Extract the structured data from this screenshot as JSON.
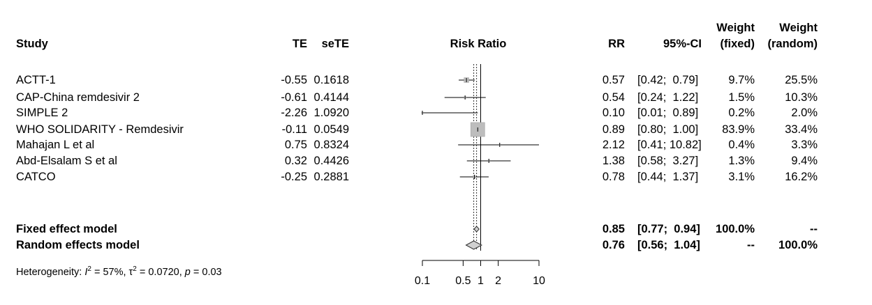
{
  "chart_data": {
    "type": "forest",
    "headers": {
      "study": "Study",
      "te": "TE",
      "sete": "seTE",
      "plot": "Risk Ratio",
      "rr": "RR",
      "ci": "95%-CI",
      "weight_fixed_1": "Weight",
      "weight_fixed_2": "(fixed)",
      "weight_random_1": "Weight",
      "weight_random_2": "(random)"
    },
    "studies": [
      {
        "name": "ACTT-1",
        "te": "-0.55",
        "sete": "0.1618",
        "rr": "0.57",
        "ci": "[0.42;  0.79]",
        "wf": "9.7%",
        "wr": "25.5%",
        "rr_val": 0.57,
        "lo": 0.42,
        "hi": 0.79,
        "weight": 9.7
      },
      {
        "name": "CAP-China remdesivir 2",
        "te": "-0.61",
        "sete": "0.4144",
        "rr": "0.54",
        "ci": "[0.24;  1.22]",
        "wf": "1.5%",
        "wr": "10.3%",
        "rr_val": 0.54,
        "lo": 0.24,
        "hi": 1.22,
        "weight": 1.5
      },
      {
        "name": "SIMPLE 2",
        "te": "-2.26",
        "sete": "1.0920",
        "rr": "0.10",
        "ci": "[0.01;  0.89]",
        "wf": "0.2%",
        "wr": "2.0%",
        "rr_val": 0.1,
        "lo": 0.01,
        "hi": 0.89,
        "weight": 0.2
      },
      {
        "name": "WHO SOLIDARITY - Remdesivir",
        "te": "-0.11",
        "sete": "0.0549",
        "rr": "0.89",
        "ci": "[0.80;  1.00]",
        "wf": "83.9%",
        "wr": "33.4%",
        "rr_val": 0.89,
        "lo": 0.8,
        "hi": 1.0,
        "weight": 83.9
      },
      {
        "name": "Mahajan L et al",
        "te": "0.75",
        "sete": "0.8324",
        "rr": "2.12",
        "ci": "[0.41; 10.82]",
        "wf": "0.4%",
        "wr": "3.3%",
        "rr_val": 2.12,
        "lo": 0.41,
        "hi": 10.82,
        "weight": 0.4
      },
      {
        "name": "Abd-Elsalam S et al",
        "te": "0.32",
        "sete": "0.4426",
        "rr": "1.38",
        "ci": "[0.58;  3.27]",
        "wf": "1.3%",
        "wr": "9.4%",
        "rr_val": 1.38,
        "lo": 0.58,
        "hi": 3.27,
        "weight": 1.3
      },
      {
        "name": "CATCO",
        "te": "-0.25",
        "sete": "0.2881",
        "rr": "0.78",
        "ci": "[0.44;  1.37]",
        "wf": "3.1%",
        "wr": "16.2%",
        "rr_val": 0.78,
        "lo": 0.44,
        "hi": 1.37,
        "weight": 3.1
      }
    ],
    "summaries": [
      {
        "name": "Fixed effect model",
        "rr": "0.85",
        "ci": "[0.77;  0.94]",
        "wf": "100.0%",
        "wr": "--",
        "rr_val": 0.85,
        "lo": 0.77,
        "hi": 0.94
      },
      {
        "name": "Random effects model",
        "rr": "0.76",
        "ci": "[0.56;  1.04]",
        "wf": "--",
        "wr": "100.0%",
        "rr_val": 0.76,
        "lo": 0.56,
        "hi": 1.04
      }
    ],
    "heterogeneity": "Heterogeneity: I² = 57%, τ² = 0.0720, p = 0.03",
    "x_scale": "log",
    "x_ticks": [
      0.1,
      0.5,
      1,
      2,
      10
    ],
    "x_tick_labels": [
      "0.1",
      "0.5",
      "1",
      "2",
      "10"
    ],
    "xlim": [
      0.1,
      10
    ],
    "colors": {
      "text": "#000000",
      "square": "#bdbdbd",
      "diamond": "#d0d0d0",
      "line": "#000000"
    }
  }
}
